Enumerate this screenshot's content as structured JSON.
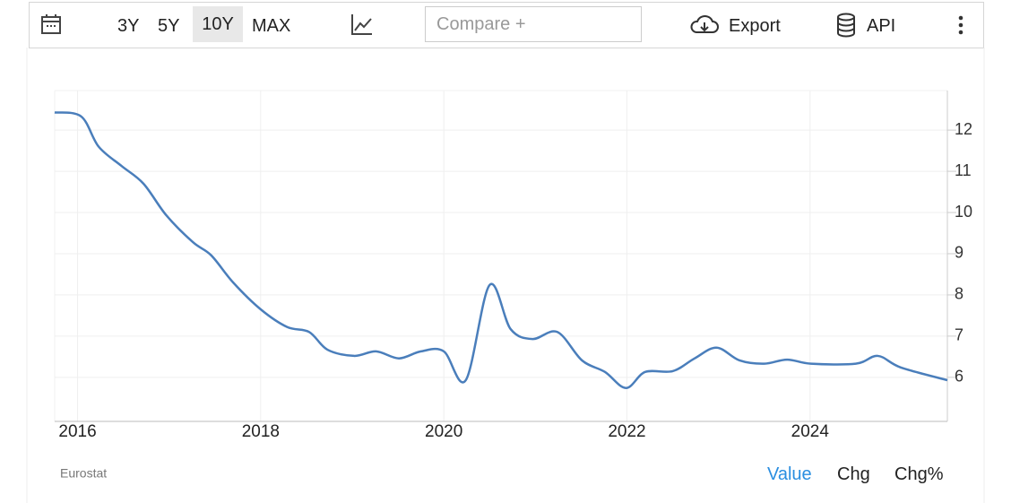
{
  "toolbar": {
    "ranges": [
      "3Y",
      "5Y",
      "10Y",
      "MAX"
    ],
    "compare": "Compare +",
    "export": "Export",
    "api": "API"
  },
  "chart_data": {
    "type": "line",
    "source": "Eurostat",
    "x": [
      2015.75,
      2016.04,
      2016.23,
      2016.48,
      2016.72,
      2016.97,
      2017.26,
      2017.46,
      2017.7,
      2018.0,
      2018.29,
      2018.53,
      2018.73,
      2019.02,
      2019.26,
      2019.51,
      2019.75,
      2020.0,
      2020.24,
      2020.5,
      2020.73,
      2020.97,
      2021.24,
      2021.51,
      2021.76,
      2021.99,
      2022.2,
      2022.5,
      2022.74,
      2022.98,
      2023.23,
      2023.5,
      2023.75,
      2024.01,
      2024.5,
      2024.74,
      2024.99,
      2025.5
    ],
    "series": [
      {
        "color": "#4a7ebb",
        "values": [
          12.43,
          12.33,
          11.6,
          11.13,
          10.7,
          9.93,
          9.28,
          8.96,
          8.3,
          7.65,
          7.22,
          7.1,
          6.67,
          6.52,
          6.63,
          6.46,
          6.63,
          6.63,
          5.93,
          8.24,
          7.17,
          6.93,
          7.1,
          6.41,
          6.13,
          5.74,
          6.13,
          6.15,
          6.46,
          6.72,
          6.41,
          6.33,
          6.43,
          6.33,
          6.33,
          6.52,
          6.24,
          5.93
        ]
      }
    ],
    "xlim": [
      2015.75,
      2025.5
    ],
    "xticks": [
      2016,
      2018,
      2020,
      2022,
      2024
    ],
    "ylim": [
      4.93,
      12.96
    ],
    "yticks": [
      6,
      7,
      8,
      9,
      10,
      11,
      12
    ],
    "grid": true
  },
  "footer": {
    "views": [
      "Value",
      "Chg",
      "Chg%"
    ]
  }
}
